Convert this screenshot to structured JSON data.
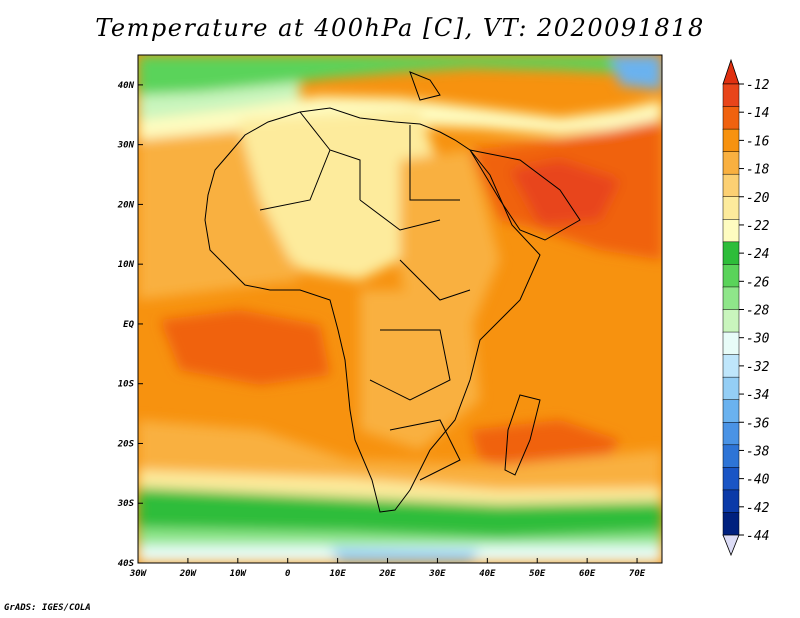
{
  "title": "Temperature at 400hPa [C], VT: 2020091818",
  "credit": "GrADS: IGES/COLA",
  "map": {
    "lon_range": [
      -30,
      75
    ],
    "lat_range": [
      -40,
      45
    ],
    "lon_ticks": [
      {
        "value": -30,
        "label": "30W"
      },
      {
        "value": -20,
        "label": "20W"
      },
      {
        "value": -10,
        "label": "10W"
      },
      {
        "value": 0,
        "label": "0"
      },
      {
        "value": 10,
        "label": "10E"
      },
      {
        "value": 20,
        "label": "20E"
      },
      {
        "value": 30,
        "label": "30E"
      },
      {
        "value": 40,
        "label": "40E"
      },
      {
        "value": 50,
        "label": "50E"
      },
      {
        "value": 60,
        "label": "60E"
      },
      {
        "value": 70,
        "label": "70E"
      }
    ],
    "lat_ticks": [
      {
        "value": 40,
        "label": "40N"
      },
      {
        "value": 30,
        "label": "30N"
      },
      {
        "value": 20,
        "label": "20N"
      },
      {
        "value": 10,
        "label": "10N"
      },
      {
        "value": 0,
        "label": "EQ"
      },
      {
        "value": -10,
        "label": "10S"
      },
      {
        "value": -20,
        "label": "20S"
      },
      {
        "value": -30,
        "label": "30S"
      },
      {
        "value": -40,
        "label": "40S"
      }
    ]
  },
  "colorbar": {
    "labels": [
      "-12",
      "-14",
      "-16",
      "-18",
      "-20",
      "-22",
      "-24",
      "-26",
      "-28",
      "-30",
      "-32",
      "-34",
      "-36",
      "-38",
      "-40",
      "-42",
      "-44"
    ],
    "colors": [
      "#e8451a",
      "#f0620f",
      "#f7920f",
      "#f9b040",
      "#fcd073",
      "#fdeb9c",
      "#fefcc0",
      "#2ebd3a",
      "#5ad35a",
      "#8fe68a",
      "#c9f5bd",
      "#e8fcf8",
      "#bfe6fb",
      "#94cef5",
      "#6ab2ef",
      "#4a93e5",
      "#2e74d6",
      "#1a55c5",
      "#0b3aa8",
      "#00207e"
    ],
    "top_arrow_color": "#e03010",
    "bottom_arrow_color": "#dcdcf6"
  }
}
